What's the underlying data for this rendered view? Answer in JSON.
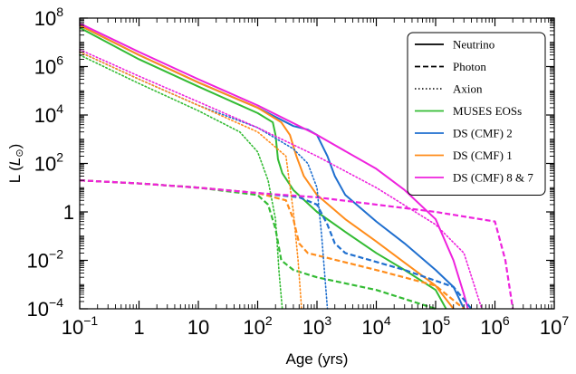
{
  "chart_data": {
    "type": "line",
    "title": "",
    "xlabel": "Age (yrs)",
    "ylabel_main": "L (",
    "ylabel_symbol": "L",
    "ylabel_sub": "⊙",
    "ylabel_close": ")",
    "xscale": "log",
    "yscale": "log",
    "xlim": [
      0.1,
      10000000
    ],
    "ylim": [
      0.0001,
      100000000
    ],
    "x_ticks": [
      {
        "value": 0.1,
        "base": "10",
        "exp": "−1"
      },
      {
        "value": 1,
        "base": "1",
        "exp": ""
      },
      {
        "value": 10,
        "base": "10",
        "exp": ""
      },
      {
        "value": 100,
        "base": "10",
        "exp": "2"
      },
      {
        "value": 1000,
        "base": "10",
        "exp": "3"
      },
      {
        "value": 10000,
        "base": "10",
        "exp": "4"
      },
      {
        "value": 100000,
        "base": "10",
        "exp": "5"
      },
      {
        "value": 1000000,
        "base": "10",
        "exp": "6"
      },
      {
        "value": 10000000,
        "base": "10",
        "exp": "7"
      }
    ],
    "y_ticks": [
      {
        "value": 0.0001,
        "base": "10",
        "exp": "−4"
      },
      {
        "value": 0.01,
        "base": "10",
        "exp": "−2"
      },
      {
        "value": 1,
        "base": "1",
        "exp": ""
      },
      {
        "value": 100,
        "base": "10",
        "exp": "2"
      },
      {
        "value": 10000,
        "base": "10",
        "exp": "4"
      },
      {
        "value": 1000000,
        "base": "10",
        "exp": "6"
      },
      {
        "value": 100000000,
        "base": "10",
        "exp": "8"
      }
    ],
    "legend": {
      "placement": "top-right",
      "entries": [
        {
          "label": "Neutrino",
          "color": "#000000",
          "style": "solid"
        },
        {
          "label": "Photon",
          "color": "#000000",
          "style": "dashed"
        },
        {
          "label": "Axion",
          "color": "#000000",
          "style": "dotted"
        },
        {
          "label": "MUSES EOSs",
          "color": "#33bb33",
          "style": "solid"
        },
        {
          "label": "DS (CMF) 2",
          "color": "#1f6fcf",
          "style": "solid"
        },
        {
          "label": "DS (CMF) 1",
          "color": "#ff8c1a",
          "style": "solid"
        },
        {
          "label": "DS (CMF) 8 & 7",
          "color": "#ee22dd",
          "style": "solid"
        }
      ]
    },
    "series": [
      {
        "name": "MUSES EOSs",
        "kind": "Neutrino",
        "color": "#33bb33",
        "style": "solid",
        "points": [
          [
            0.1,
            40000000
          ],
          [
            1,
            2000000
          ],
          [
            10,
            150000
          ],
          [
            100,
            12000
          ],
          [
            180,
            5000
          ],
          [
            200,
            1500
          ],
          [
            220,
            150
          ],
          [
            260,
            40
          ],
          [
            400,
            8
          ],
          [
            1000,
            1
          ],
          [
            3000,
            0.15
          ],
          [
            10000,
            0.02
          ],
          [
            30000,
            0.004
          ],
          [
            100000,
            0.0006
          ],
          [
            150000,
            0.0001
          ]
        ]
      },
      {
        "name": "DS (CMF) 2",
        "kind": "Neutrino",
        "color": "#1f6fcf",
        "style": "solid",
        "points": [
          [
            0.1,
            50000000
          ],
          [
            1,
            3000000
          ],
          [
            10,
            220000
          ],
          [
            100,
            20000
          ],
          [
            400,
            3500
          ],
          [
            700,
            2500
          ],
          [
            1000,
            1500
          ],
          [
            1500,
            200
          ],
          [
            2000,
            30
          ],
          [
            3000,
            5
          ],
          [
            10000,
            0.4
          ],
          [
            30000,
            0.05
          ],
          [
            100000,
            0.004
          ],
          [
            200000,
            0.0008
          ],
          [
            300000,
            0.0001
          ]
        ]
      },
      {
        "name": "DS (CMF) 1",
        "kind": "Neutrino",
        "color": "#ff8c1a",
        "style": "solid",
        "points": [
          [
            0.1,
            50000000
          ],
          [
            1,
            3000000
          ],
          [
            10,
            220000
          ],
          [
            100,
            20000
          ],
          [
            250,
            5000
          ],
          [
            350,
            1500
          ],
          [
            450,
            200
          ],
          [
            600,
            30
          ],
          [
            1000,
            5
          ],
          [
            3000,
            0.5
          ],
          [
            10000,
            0.06
          ],
          [
            30000,
            0.008
          ],
          [
            100000,
            0.0009
          ],
          [
            200000,
            0.0001
          ]
        ]
      },
      {
        "name": "DS (CMF) 8 & 7",
        "kind": "Neutrino",
        "color": "#ee22dd",
        "style": "solid",
        "points": [
          [
            0.1,
            60000000
          ],
          [
            1,
            4000000
          ],
          [
            10,
            300000
          ],
          [
            100,
            25000
          ],
          [
            1000,
            1500
          ],
          [
            10000,
            60
          ],
          [
            30000,
            8
          ],
          [
            100000,
            0.5
          ],
          [
            200000,
            0.01
          ],
          [
            300000,
            0.0004
          ],
          [
            350000,
            0.0001
          ]
        ]
      },
      {
        "name": "MUSES EOSs",
        "kind": "Photon",
        "color": "#33bb33",
        "style": "dashed",
        "points": [
          [
            0.1,
            20
          ],
          [
            1,
            15
          ],
          [
            10,
            10
          ],
          [
            100,
            5
          ],
          [
            150,
            2
          ],
          [
            200,
            0.2
          ],
          [
            250,
            0.01
          ],
          [
            400,
            0.004
          ],
          [
            1000,
            0.002
          ],
          [
            10000,
            0.0006
          ],
          [
            100000,
            0.0001
          ]
        ]
      },
      {
        "name": "DS (CMF) 2",
        "kind": "Photon",
        "color": "#1f6fcf",
        "style": "dashed",
        "points": [
          [
            0.1,
            20
          ],
          [
            1,
            15
          ],
          [
            10,
            10
          ],
          [
            100,
            6
          ],
          [
            500,
            4
          ],
          [
            1000,
            2
          ],
          [
            1500,
            0.3
          ],
          [
            2000,
            0.05
          ],
          [
            3000,
            0.02
          ],
          [
            30000,
            0.004
          ],
          [
            200000,
            0.0008
          ],
          [
            400000,
            0.0001
          ]
        ]
      },
      {
        "name": "DS (CMF) 1",
        "kind": "Photon",
        "color": "#ff8c1a",
        "style": "dashed",
        "points": [
          [
            0.1,
            20
          ],
          [
            1,
            15
          ],
          [
            10,
            10
          ],
          [
            100,
            6
          ],
          [
            300,
            3
          ],
          [
            400,
            0.5
          ],
          [
            500,
            0.05
          ],
          [
            700,
            0.02
          ],
          [
            10000,
            0.004
          ],
          [
            100000,
            0.0009
          ],
          [
            300000,
            0.0001
          ]
        ]
      },
      {
        "name": "DS (CMF) 8 & 7",
        "kind": "Photon",
        "color": "#ee22dd",
        "style": "dashed",
        "points": [
          [
            0.1,
            20
          ],
          [
            1,
            15
          ],
          [
            10,
            10
          ],
          [
            100,
            6
          ],
          [
            1000,
            4
          ],
          [
            10000,
            2
          ],
          [
            100000,
            1
          ],
          [
            1000000,
            0.4
          ],
          [
            1500000,
            0.01
          ],
          [
            2000000,
            0.0001
          ]
        ]
      },
      {
        "name": "MUSES EOSs",
        "kind": "Axion",
        "color": "#33bb33",
        "style": "dotted",
        "points": [
          [
            0.1,
            3000000
          ],
          [
            1,
            200000
          ],
          [
            10,
            15000
          ],
          [
            50,
            2000
          ],
          [
            100,
            300
          ],
          [
            150,
            20
          ],
          [
            200,
            0.5
          ],
          [
            230,
            0.003
          ],
          [
            260,
            0.0001
          ]
        ]
      },
      {
        "name": "DS (CMF) 2",
        "kind": "Axion",
        "color": "#1f6fcf",
        "style": "dotted",
        "points": [
          [
            0.1,
            4000000
          ],
          [
            1,
            300000
          ],
          [
            10,
            25000
          ],
          [
            100,
            3000
          ],
          [
            400,
            400
          ],
          [
            700,
            100
          ],
          [
            1000,
            10
          ],
          [
            1200,
            0.1
          ],
          [
            1500,
            0.0001
          ]
        ]
      },
      {
        "name": "DS (CMF) 1",
        "kind": "Axion",
        "color": "#ff8c1a",
        "style": "dotted",
        "points": [
          [
            0.1,
            4000000
          ],
          [
            1,
            300000
          ],
          [
            10,
            25000
          ],
          [
            100,
            2000
          ],
          [
            300,
            200
          ],
          [
            400,
            1
          ],
          [
            480,
            0.01
          ],
          [
            550,
            0.0001
          ]
        ]
      },
      {
        "name": "DS (CMF) 8 & 7",
        "kind": "Axion",
        "color": "#ee22dd",
        "style": "dotted",
        "points": [
          [
            0.1,
            5000000
          ],
          [
            1,
            400000
          ],
          [
            10,
            35000
          ],
          [
            100,
            3000
          ],
          [
            1000,
            200
          ],
          [
            10000,
            10
          ],
          [
            100000,
            0.3
          ],
          [
            300000,
            0.02
          ],
          [
            600000,
            0.0001
          ]
        ]
      }
    ]
  }
}
